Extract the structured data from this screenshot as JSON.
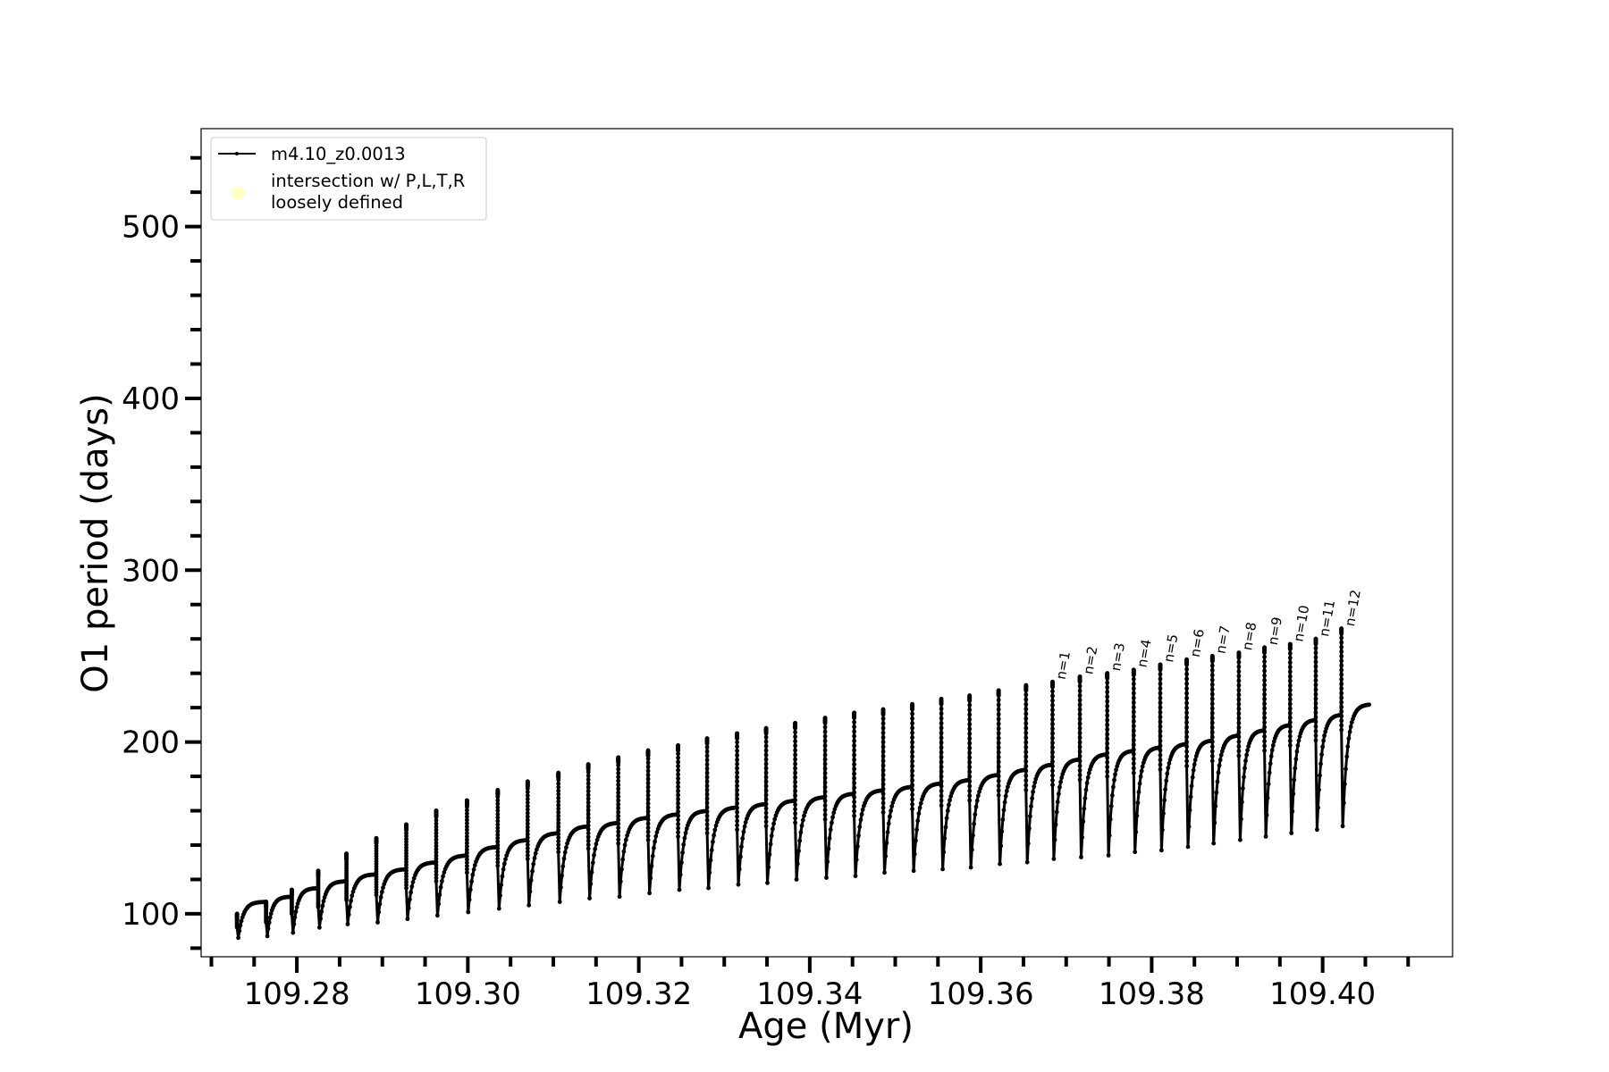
{
  "chart_data": {
    "type": "line",
    "xlabel": "Age (Myr)",
    "ylabel": "O1 period (days)",
    "xlim": [
      109.2688,
      109.4152
    ],
    "ylim": [
      75,
      557
    ],
    "xticks": [
      109.28,
      109.3,
      109.32,
      109.34,
      109.36,
      109.38,
      109.4
    ],
    "xtick_labels": [
      "109.28",
      "109.30",
      "109.32",
      "109.34",
      "109.36",
      "109.38",
      "109.40"
    ],
    "yticks": [
      100,
      200,
      300,
      400,
      500
    ],
    "ytick_labels": [
      "100",
      "200",
      "300",
      "400",
      "500"
    ],
    "grid": false,
    "legend": {
      "placement": "upper-left",
      "entries": [
        {
          "label": "m4.10_z0.0013",
          "color": "#000000",
          "marker": "line"
        },
        {
          "label_lines": [
            "intersection w/ P,L,T,R",
            "loosely defined"
          ],
          "color": "#ffffc0",
          "marker": "circle"
        }
      ]
    },
    "series": [
      {
        "name": "m4.10_z0.0013",
        "color": "#000000",
        "pulse_start_ages": [
          109.273,
          109.2764,
          109.2794,
          109.2825,
          109.2858,
          109.2893,
          109.2928,
          109.2963,
          109.2999,
          109.3035,
          109.307,
          109.3106,
          109.3141,
          109.3176,
          109.3211,
          109.3246,
          109.328,
          109.3315,
          109.3349,
          109.3383,
          109.3418,
          109.3452,
          109.3486,
          109.352,
          109.3554,
          109.3587,
          109.3621,
          109.3653,
          109.3684,
          109.3716,
          109.3748,
          109.3779,
          109.381,
          109.3841,
          109.3871,
          109.3902,
          109.3932,
          109.3962,
          109.3992,
          109.4022
        ],
        "peak_periods": [
          100,
          107,
          114,
          125,
          135,
          144,
          152,
          160,
          166,
          172,
          177,
          182,
          187,
          191,
          195,
          198,
          202,
          205,
          208,
          211,
          214,
          217,
          219,
          222,
          225,
          227,
          230,
          233,
          235,
          238,
          240,
          242,
          245,
          248,
          250,
          252,
          255,
          257,
          260,
          266
        ],
        "trough_periods": [
          86,
          87,
          89,
          92,
          94,
          95,
          97,
          99,
          101,
          103,
          105,
          107,
          109,
          110,
          112,
          114,
          115,
          117,
          118,
          120,
          121,
          122,
          124,
          125,
          126,
          127,
          129,
          130,
          132,
          133,
          134,
          136,
          137,
          139,
          141,
          143,
          145,
          147,
          149,
          151
        ],
        "plateau_periods": [
          107,
          110,
          115,
          119,
          123,
          126,
          130,
          134,
          139,
          143,
          147,
          151,
          153,
          156,
          158,
          160,
          162,
          164,
          166,
          168,
          170,
          172,
          174,
          176,
          178,
          181,
          184,
          187,
          190,
          193,
          195,
          197,
          199,
          201,
          204,
          207,
          210,
          213,
          216,
          219
        ],
        "end": {
          "age": 109.4055,
          "period": 222
        }
      }
    ],
    "annotations": [
      "n=1",
      "n=2",
      "n=3",
      "n=4",
      "n=5",
      "n=6",
      "n=7",
      "n=8",
      "n=9",
      "n=10",
      "n=11",
      "n=12"
    ],
    "annotation_start_index": 28
  }
}
